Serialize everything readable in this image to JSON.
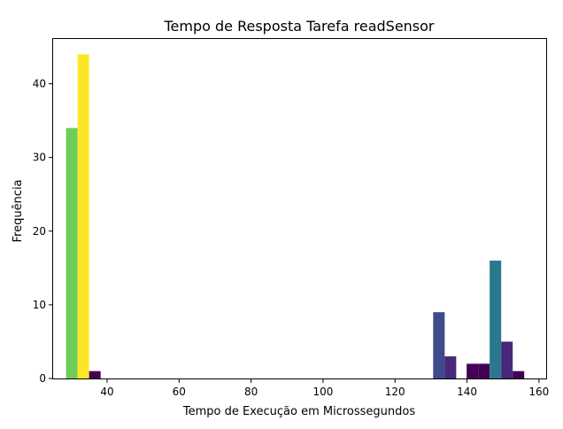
{
  "chart_data": {
    "type": "bar",
    "title": "Tempo de Resposta Tarefa readSensor",
    "xlabel": "Tempo de Execução em Microssegundos",
    "ylabel": "Frequência",
    "xlim": [
      25,
      162
    ],
    "ylim": [
      0,
      46.2
    ],
    "xticks": [
      40,
      60,
      80,
      100,
      120,
      140,
      160
    ],
    "yticks": [
      0,
      10,
      20,
      30,
      40
    ],
    "grid": false,
    "bars": [
      {
        "x0": 28.6,
        "x1": 31.8,
        "value": 34,
        "color": "#6ccd5a"
      },
      {
        "x0": 31.8,
        "x1": 35.0,
        "value": 44,
        "color": "#fde725"
      },
      {
        "x0": 35.0,
        "x1": 38.2,
        "value": 1,
        "color": "#440154"
      },
      {
        "x0": 130.6,
        "x1": 133.8,
        "value": 9,
        "color": "#3e4a89"
      },
      {
        "x0": 133.8,
        "x1": 137.0,
        "value": 3,
        "color": "#482878"
      },
      {
        "x0": 139.9,
        "x1": 143.1,
        "value": 2,
        "color": "#440154"
      },
      {
        "x0": 143.1,
        "x1": 146.3,
        "value": 2,
        "color": "#440154"
      },
      {
        "x0": 146.3,
        "x1": 149.5,
        "value": 16,
        "color": "#2a788e"
      },
      {
        "x0": 149.5,
        "x1": 152.7,
        "value": 5,
        "color": "#482878"
      },
      {
        "x0": 152.7,
        "x1": 155.9,
        "value": 1,
        "color": "#440154"
      }
    ]
  }
}
